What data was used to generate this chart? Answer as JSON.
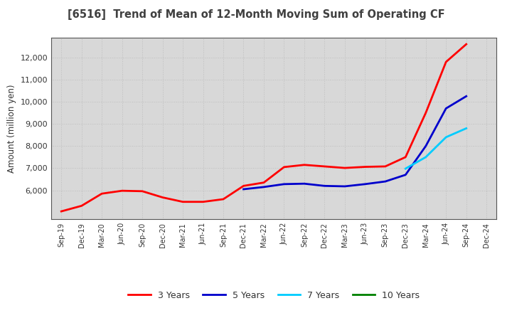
{
  "title": "[6516]  Trend of Mean of 12-Month Moving Sum of Operating CF",
  "ylabel": "Amount (million yen)",
  "background_color": "#ffffff",
  "plot_bg_color": "#d8d8d8",
  "grid_color": "#bbbbbb",
  "title_color": "#404040",
  "xlim_start": "Sep-19",
  "xlim_end": "Dec-24",
  "ylim": [
    4700,
    12900
  ],
  "yticks": [
    6000,
    7000,
    8000,
    9000,
    10000,
    11000,
    12000
  ],
  "x_labels": [
    "Sep-19",
    "Dec-19",
    "Mar-20",
    "Jun-20",
    "Sep-20",
    "Dec-20",
    "Mar-21",
    "Jun-21",
    "Sep-21",
    "Dec-21",
    "Mar-22",
    "Jun-22",
    "Sep-22",
    "Dec-22",
    "Mar-23",
    "Jun-23",
    "Sep-23",
    "Dec-23",
    "Mar-24",
    "Jun-24",
    "Sep-24",
    "Dec-24"
  ],
  "series": {
    "3 Years": {
      "color": "#ff0000",
      "x": [
        "Sep-19",
        "Dec-19",
        "Mar-20",
        "Jun-20",
        "Sep-20",
        "Dec-20",
        "Mar-21",
        "Jun-21",
        "Sep-21",
        "Dec-21",
        "Mar-22",
        "Jun-22",
        "Sep-22",
        "Dec-22",
        "Mar-23",
        "Jun-23",
        "Sep-23",
        "Dec-23",
        "Mar-24",
        "Jun-24",
        "Sep-24"
      ],
      "y": [
        5050,
        5300,
        5850,
        5980,
        5960,
        5680,
        5480,
        5480,
        5600,
        6200,
        6350,
        7050,
        7150,
        7080,
        7010,
        7060,
        7080,
        7500,
        9500,
        11800,
        12600
      ]
    },
    "5 Years": {
      "color": "#0000cc",
      "x": [
        "Dec-21",
        "Mar-22",
        "Jun-22",
        "Sep-22",
        "Dec-22",
        "Mar-23",
        "Jun-23",
        "Sep-23",
        "Dec-23",
        "Mar-24",
        "Jun-24",
        "Sep-24"
      ],
      "y": [
        6050,
        6150,
        6280,
        6300,
        6200,
        6180,
        6280,
        6400,
        6700,
        8000,
        9700,
        10250
      ]
    },
    "7 Years": {
      "color": "#00ccff",
      "x": [
        "Dec-23",
        "Mar-24",
        "Jun-24",
        "Sep-24"
      ],
      "y": [
        6980,
        7500,
        8400,
        8800
      ]
    },
    "10 Years": {
      "color": "#008000",
      "x": [],
      "y": []
    }
  },
  "legend_entries": [
    "3 Years",
    "5 Years",
    "7 Years",
    "10 Years"
  ],
  "legend_colors": [
    "#ff0000",
    "#0000cc",
    "#00ccff",
    "#008000"
  ]
}
